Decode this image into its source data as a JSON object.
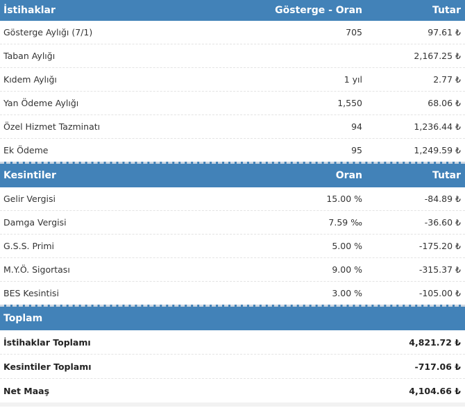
{
  "earnings": {
    "header": {
      "title": "İstihaklar",
      "col2": "Gösterge - Oran",
      "col3": "Tutar"
    },
    "rows": [
      {
        "label": "Gösterge Aylığı (7/1)",
        "ratio": "705",
        "amount": "97.61 ₺"
      },
      {
        "label": "Taban Aylığı",
        "ratio": "",
        "amount": "2,167.25 ₺"
      },
      {
        "label": "Kıdem Aylığı",
        "ratio": "1 yıl",
        "amount": "2.77 ₺"
      },
      {
        "label": "Yan Ödeme Aylığı",
        "ratio": "1,550",
        "amount": "68.06 ₺"
      },
      {
        "label": "Özel Hizmet Tazminatı",
        "ratio": "94",
        "amount": "1,236.44 ₺"
      },
      {
        "label": "Ek Ödeme",
        "ratio": "95",
        "amount": "1,249.59 ₺"
      }
    ]
  },
  "deductions": {
    "header": {
      "title": "Kesintiler",
      "col2": "Oran",
      "col3": "Tutar"
    },
    "rows": [
      {
        "label": "Gelir Vergisi",
        "ratio": "15.00 %",
        "amount": "-84.89 ₺"
      },
      {
        "label": "Damga Vergisi",
        "ratio": "7.59 ‰",
        "amount": "-36.60 ₺"
      },
      {
        "label": "G.S.S. Primi",
        "ratio": "5.00 %",
        "amount": "-175.20 ₺"
      },
      {
        "label": "M.Y.Ö. Sigortası",
        "ratio": "9.00 %",
        "amount": "-315.37 ₺"
      },
      {
        "label": "BES Kesintisi",
        "ratio": "3.00 %",
        "amount": "-105.00 ₺"
      }
    ]
  },
  "totals": {
    "header": {
      "title": "Toplam"
    },
    "rows": [
      {
        "label": "İstihaklar Toplamı",
        "amount": "4,821.72 ₺"
      },
      {
        "label": "Kesintiler Toplamı",
        "amount": "-717.06 ₺"
      },
      {
        "label": "Net Maaş",
        "amount": "4,104.66 ₺"
      }
    ]
  },
  "colors": {
    "header_bg": "#4282b8",
    "header_text": "#ffffff"
  }
}
